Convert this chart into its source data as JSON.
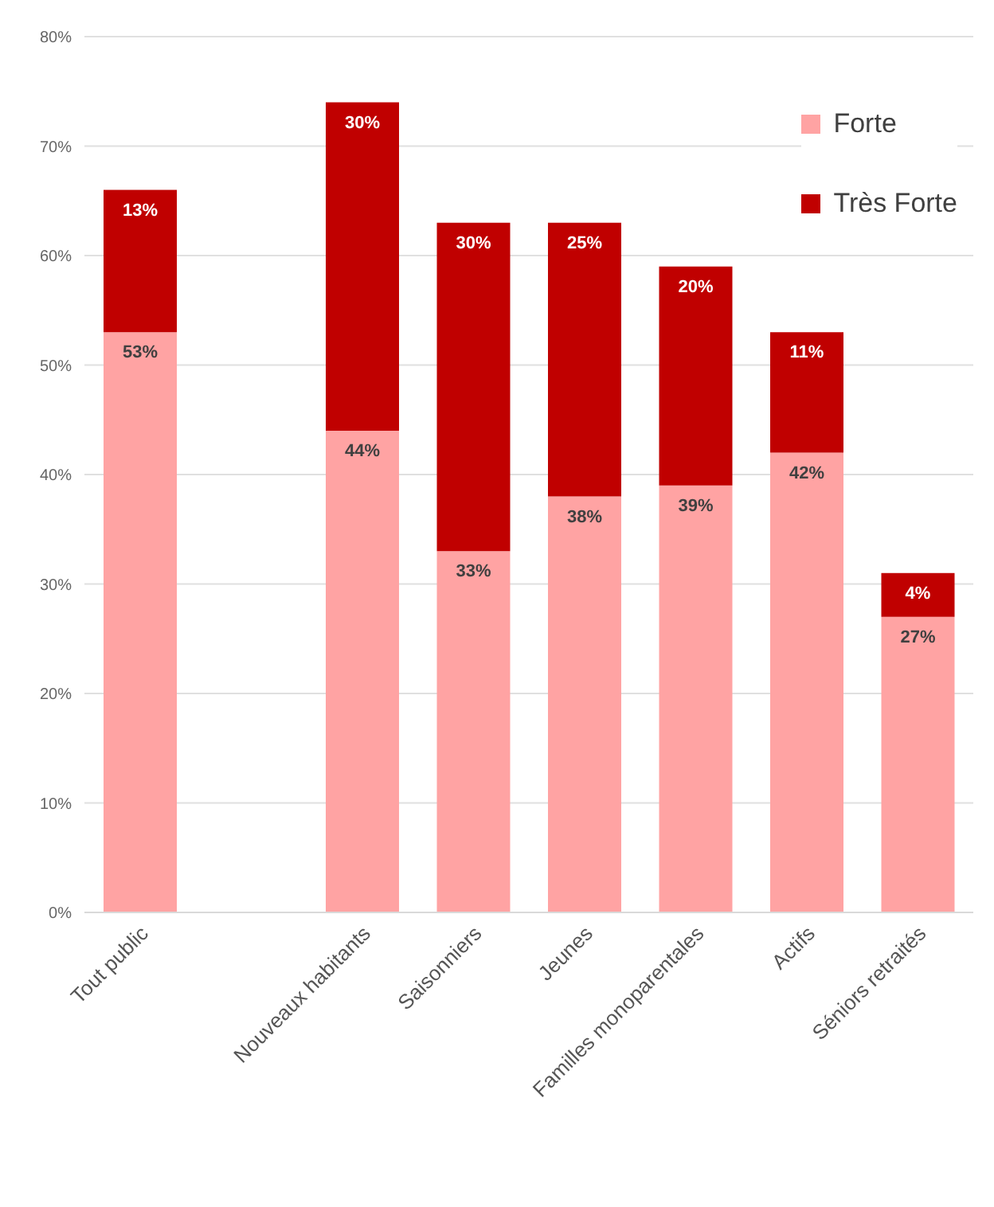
{
  "chart_data": {
    "type": "bar",
    "stacked": true,
    "categories": [
      "Tout public",
      null,
      "Nouveaux habitants",
      "Saisonniers",
      "Jeunes",
      "Familles monoparentales",
      "Actifs",
      "Séniors retraités"
    ],
    "series": [
      {
        "name": "Forte",
        "color": "#ffa3a3",
        "values": [
          53,
          null,
          44,
          33,
          38,
          39,
          42,
          27
        ],
        "value_labels": [
          "53%",
          null,
          "44%",
          "33%",
          "38%",
          "39%",
          "42%",
          "27%"
        ]
      },
      {
        "name": "Très Forte",
        "color": "#c00000",
        "values": [
          13,
          null,
          30,
          30,
          25,
          20,
          11,
          4
        ],
        "value_labels": [
          "13%",
          null,
          "30%",
          "30%",
          "25%",
          "20%",
          "11%",
          "4%"
        ]
      }
    ],
    "ylim": [
      0,
      80
    ],
    "yticks": [
      {
        "value": 0,
        "label": "0%"
      },
      {
        "value": 10,
        "label": "10%"
      },
      {
        "value": 20,
        "label": "20%"
      },
      {
        "value": 30,
        "label": "30%"
      },
      {
        "value": 40,
        "label": "40%"
      },
      {
        "value": 50,
        "label": "50%"
      },
      {
        "value": 60,
        "label": "60%"
      },
      {
        "value": 70,
        "label": "70%"
      },
      {
        "value": 80,
        "label": "80%"
      }
    ],
    "grid": "y",
    "legend": "top right"
  }
}
